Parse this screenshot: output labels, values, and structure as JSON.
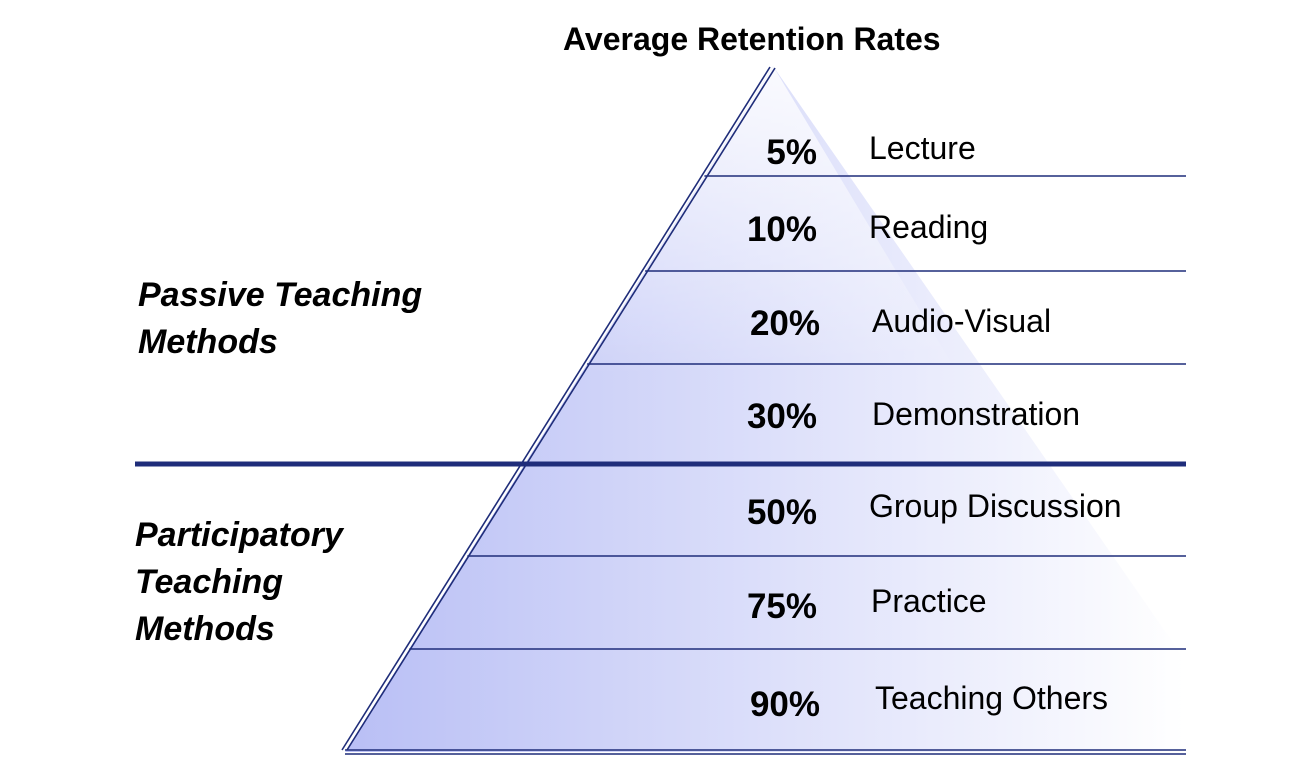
{
  "title": "Average Retention Rates",
  "groups": {
    "passive": {
      "lines": [
        "Passive Teaching",
        "Methods"
      ]
    },
    "participatory": {
      "lines": [
        "Participatory",
        "Teaching",
        "Methods"
      ]
    }
  },
  "levels": [
    {
      "percent": "5%",
      "value": 5,
      "method": "Lecture",
      "group": "passive"
    },
    {
      "percent": "10%",
      "value": 10,
      "method": "Reading",
      "group": "passive"
    },
    {
      "percent": "20%",
      "value": 20,
      "method": "Audio-Visual",
      "group": "passive"
    },
    {
      "percent": "30%",
      "value": 30,
      "method": "Demonstration",
      "group": "passive"
    },
    {
      "percent": "50%",
      "value": 50,
      "method": "Group Discussion",
      "group": "participatory"
    },
    {
      "percent": "75%",
      "value": 75,
      "method": "Practice",
      "group": "participatory"
    },
    {
      "percent": "90%",
      "value": 90,
      "method": "Teaching Others",
      "group": "participatory"
    }
  ],
  "colors": {
    "line": "#1f2d7a",
    "fill_left": "#b9bff5",
    "fill_right": "#ffffff",
    "text": "#000000"
  }
}
